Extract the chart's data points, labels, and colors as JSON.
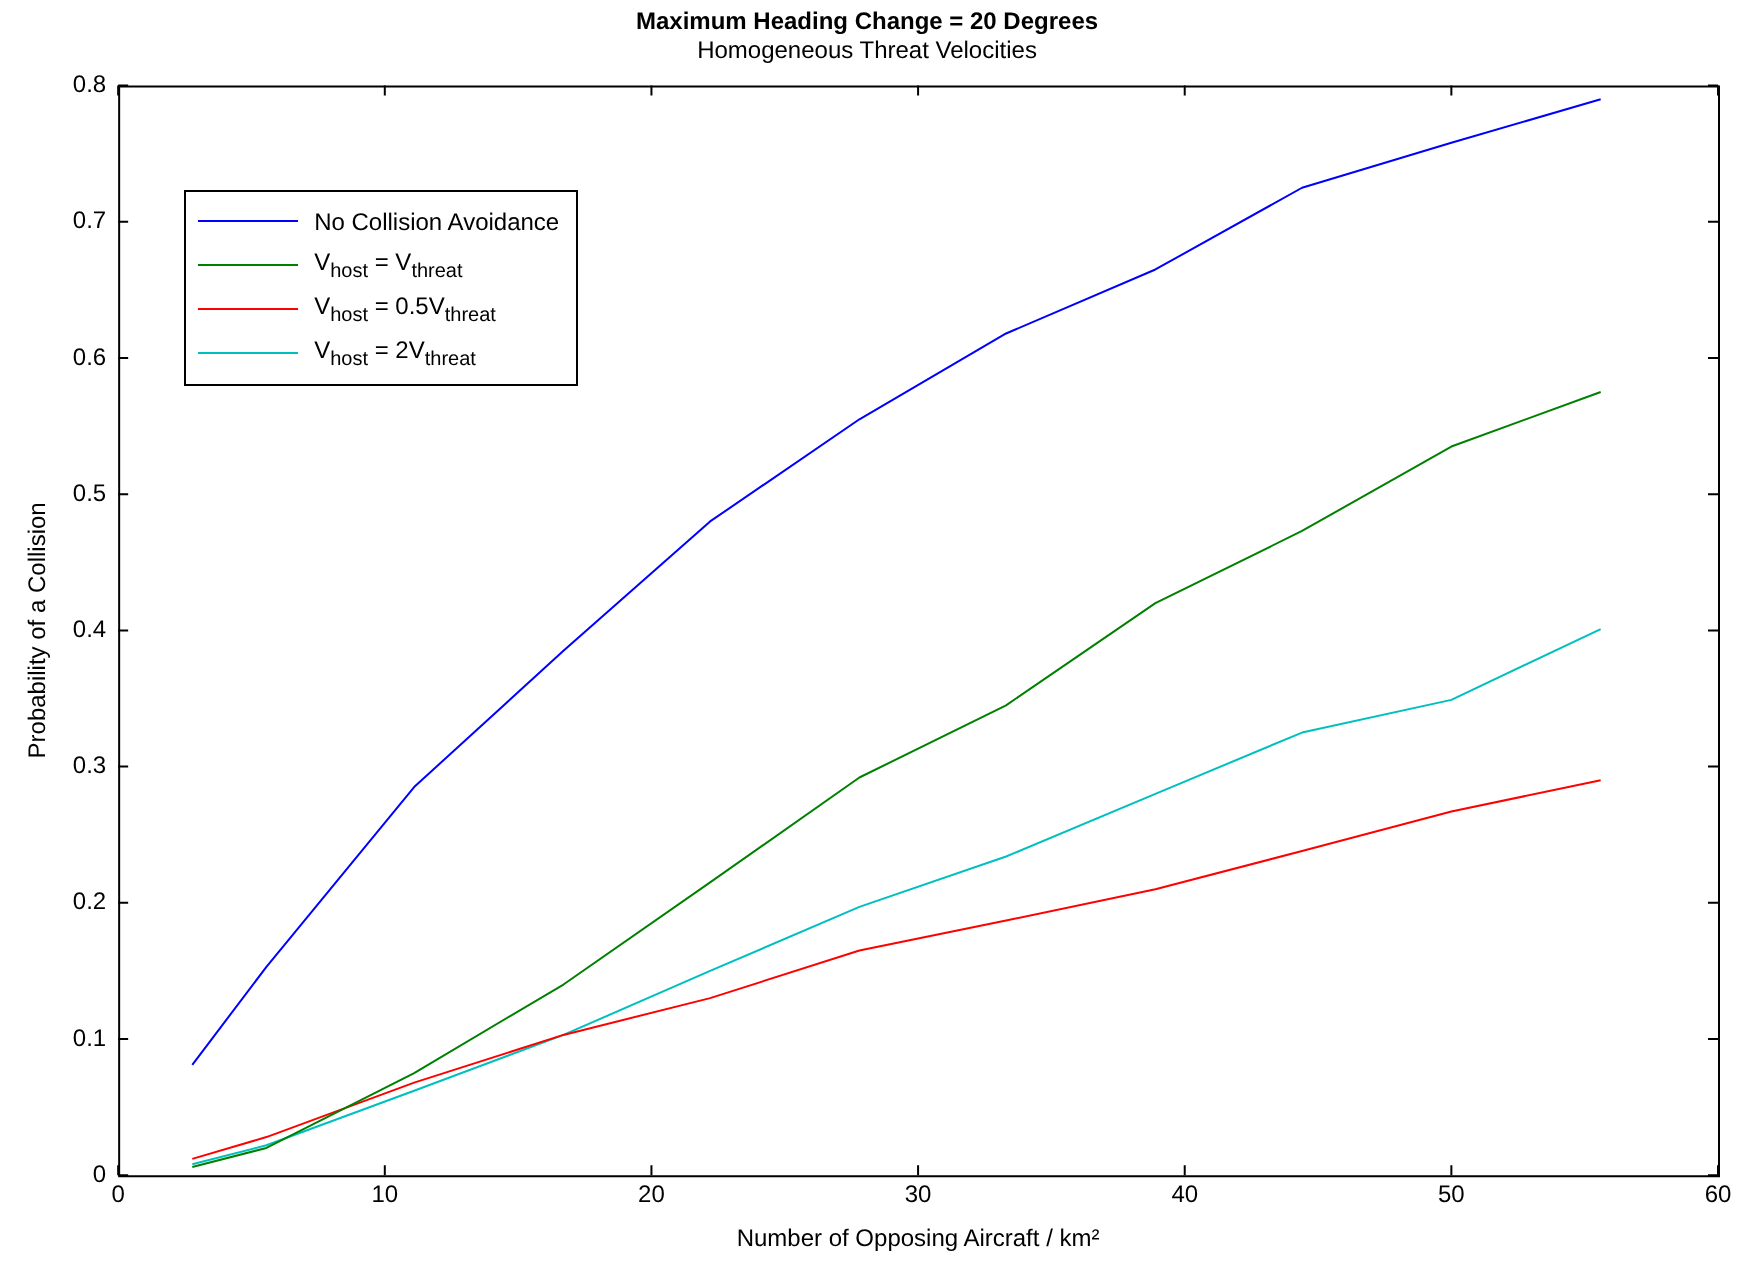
{
  "chart_data": {
    "type": "line",
    "title": "Maximum Heading Change = 20 Degrees",
    "subtitle": "Homogeneous Threat Velocities",
    "xlabel": "Number of Opposing Aircraft / km²",
    "ylabel": "Probability of a Collision",
    "x": [
      2.78,
      5.56,
      11.1,
      16.7,
      22.2,
      27.8,
      33.3,
      38.9,
      44.4,
      50,
      55.6
    ],
    "series": [
      {
        "name": "No Collision Avoidance",
        "color": "#0000ff",
        "values": [
          0.081,
          0.153,
          0.285,
          0.385,
          0.48,
          0.555,
          0.618,
          0.665,
          0.725,
          0.758,
          0.79
        ]
      },
      {
        "name": "V$_{host}$ = V$_{threat}$",
        "color": "#008000",
        "values": [
          0.006,
          0.02,
          0.075,
          0.14,
          0.215,
          0.292,
          0.345,
          0.42,
          0.473,
          0.535,
          0.575
        ]
      },
      {
        "name": "V$_{host}$ = 0.5V$_{threat}$",
        "color": "#ff0000",
        "values": [
          0.012,
          0.028,
          0.068,
          0.103,
          0.13,
          0.165,
          0.187,
          0.21,
          0.238,
          0.267,
          0.29
        ]
      },
      {
        "name": "V$_{host}$ = 2V$_{threat}$",
        "color": "#00bfbf",
        "values": [
          0.008,
          0.022,
          0.062,
          0.103,
          0.15,
          0.197,
          0.234,
          0.28,
          0.325,
          0.349,
          0.401
        ]
      }
    ],
    "xlim": [
      0,
      60
    ],
    "xticks": [
      0,
      10,
      20,
      30,
      40,
      50,
      60
    ],
    "ylim": [
      0,
      0.8
    ],
    "yticks": [
      0,
      0.1,
      0.2,
      0.3,
      0.4,
      0.5,
      0.6,
      0.7,
      0.8
    ],
    "grid": false,
    "legend": "top left",
    "marker": "none",
    "line_style": "solid"
  }
}
